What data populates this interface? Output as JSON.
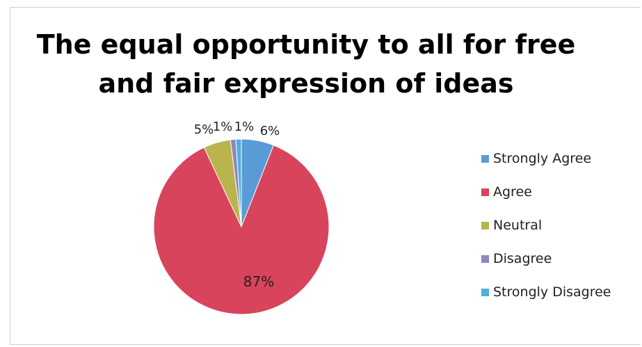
{
  "chart_data": {
    "type": "pie",
    "title_lines": [
      "The equal opportunity to all for free",
      "and fair expression of ideas"
    ],
    "categories": [
      "Strongly Agree",
      "Agree",
      "Neutral",
      "Disagree",
      "Strongly Disagree"
    ],
    "values": [
      6,
      87,
      5,
      1,
      1
    ],
    "data_labels": [
      "6%",
      "87%",
      "5%",
      "1%",
      "1%"
    ],
    "colors": [
      "#5b9bd5",
      "#d8445c",
      "#b9b44c",
      "#8e86c2",
      "#4fb0d8"
    ],
    "legend_position": "right"
  }
}
